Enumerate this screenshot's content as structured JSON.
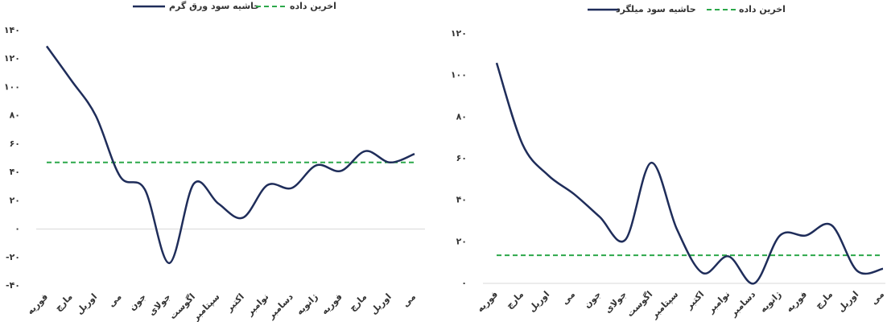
{
  "chart_data": [
    {
      "type": "line",
      "categories": [
        "فوریه",
        "مارچ",
        "اوریل",
        "می",
        "جون",
        "جولای",
        "اگوست",
        "سپتامبر",
        "اکتبر",
        "نوامبر",
        "دسامبر",
        "ژانویه",
        "فوریه",
        "مارچ",
        "اوریل",
        "می"
      ],
      "series": [
        {
          "name": "حاشیه سود ورق گرم",
          "color": "#1f2d5a",
          "values": [
            129,
            105,
            80,
            37,
            28,
            -24,
            32,
            18,
            8,
            31,
            29,
            45,
            41,
            55,
            47,
            53
          ]
        }
      ],
      "reference": {
        "name": "اخرین داده",
        "color": "#2ca84a",
        "value": 47
      },
      "ylim": [
        -40,
        140
      ],
      "yticks": [
        {
          "value": 140,
          "label": "۱۴۰"
        },
        {
          "value": 120,
          "label": "۱۲۰"
        },
        {
          "value": 100,
          "label": "۱۰۰"
        },
        {
          "value": 80,
          "label": "۸۰"
        },
        {
          "value": 60,
          "label": "۶۰"
        },
        {
          "value": 40,
          "label": "۴۰"
        },
        {
          "value": 20,
          "label": "۲۰"
        },
        {
          "value": 0,
          "label": "۰"
        },
        {
          "value": -20,
          "label": "-۲۰"
        },
        {
          "value": -40,
          "label": "-۴۰"
        }
      ]
    },
    {
      "type": "line",
      "categories": [
        "فوریه",
        "مارچ",
        "اوریل",
        "می",
        "جون",
        "جولای",
        "اگوست",
        "سپتامبر",
        "اکتبر",
        "نوامبر",
        "دسامبر",
        "ژانویه",
        "فوریه",
        "مارچ",
        "اوریل",
        "می"
      ],
      "series": [
        {
          "name": "حاشیه سود میلگرد",
          "color": "#1f2d5a",
          "values": [
            106,
            67,
            52,
            43,
            32,
            21,
            58,
            26,
            5,
            13,
            0,
            23,
            23,
            28,
            6,
            7
          ]
        }
      ],
      "reference": {
        "name": "اخرین داده",
        "color": "#2ca84a",
        "value": 13.5
      },
      "ylim": [
        0,
        120
      ],
      "yticks": [
        {
          "value": 120,
          "label": "۱۲۰"
        },
        {
          "value": 100,
          "label": "۱۰۰"
        },
        {
          "value": 80,
          "label": "۸۰"
        },
        {
          "value": 60,
          "label": "۶۰"
        },
        {
          "value": 40,
          "label": "۴۰"
        },
        {
          "value": 20,
          "label": "۲۰"
        },
        {
          "value": 0,
          "label": "۰"
        }
      ]
    }
  ]
}
